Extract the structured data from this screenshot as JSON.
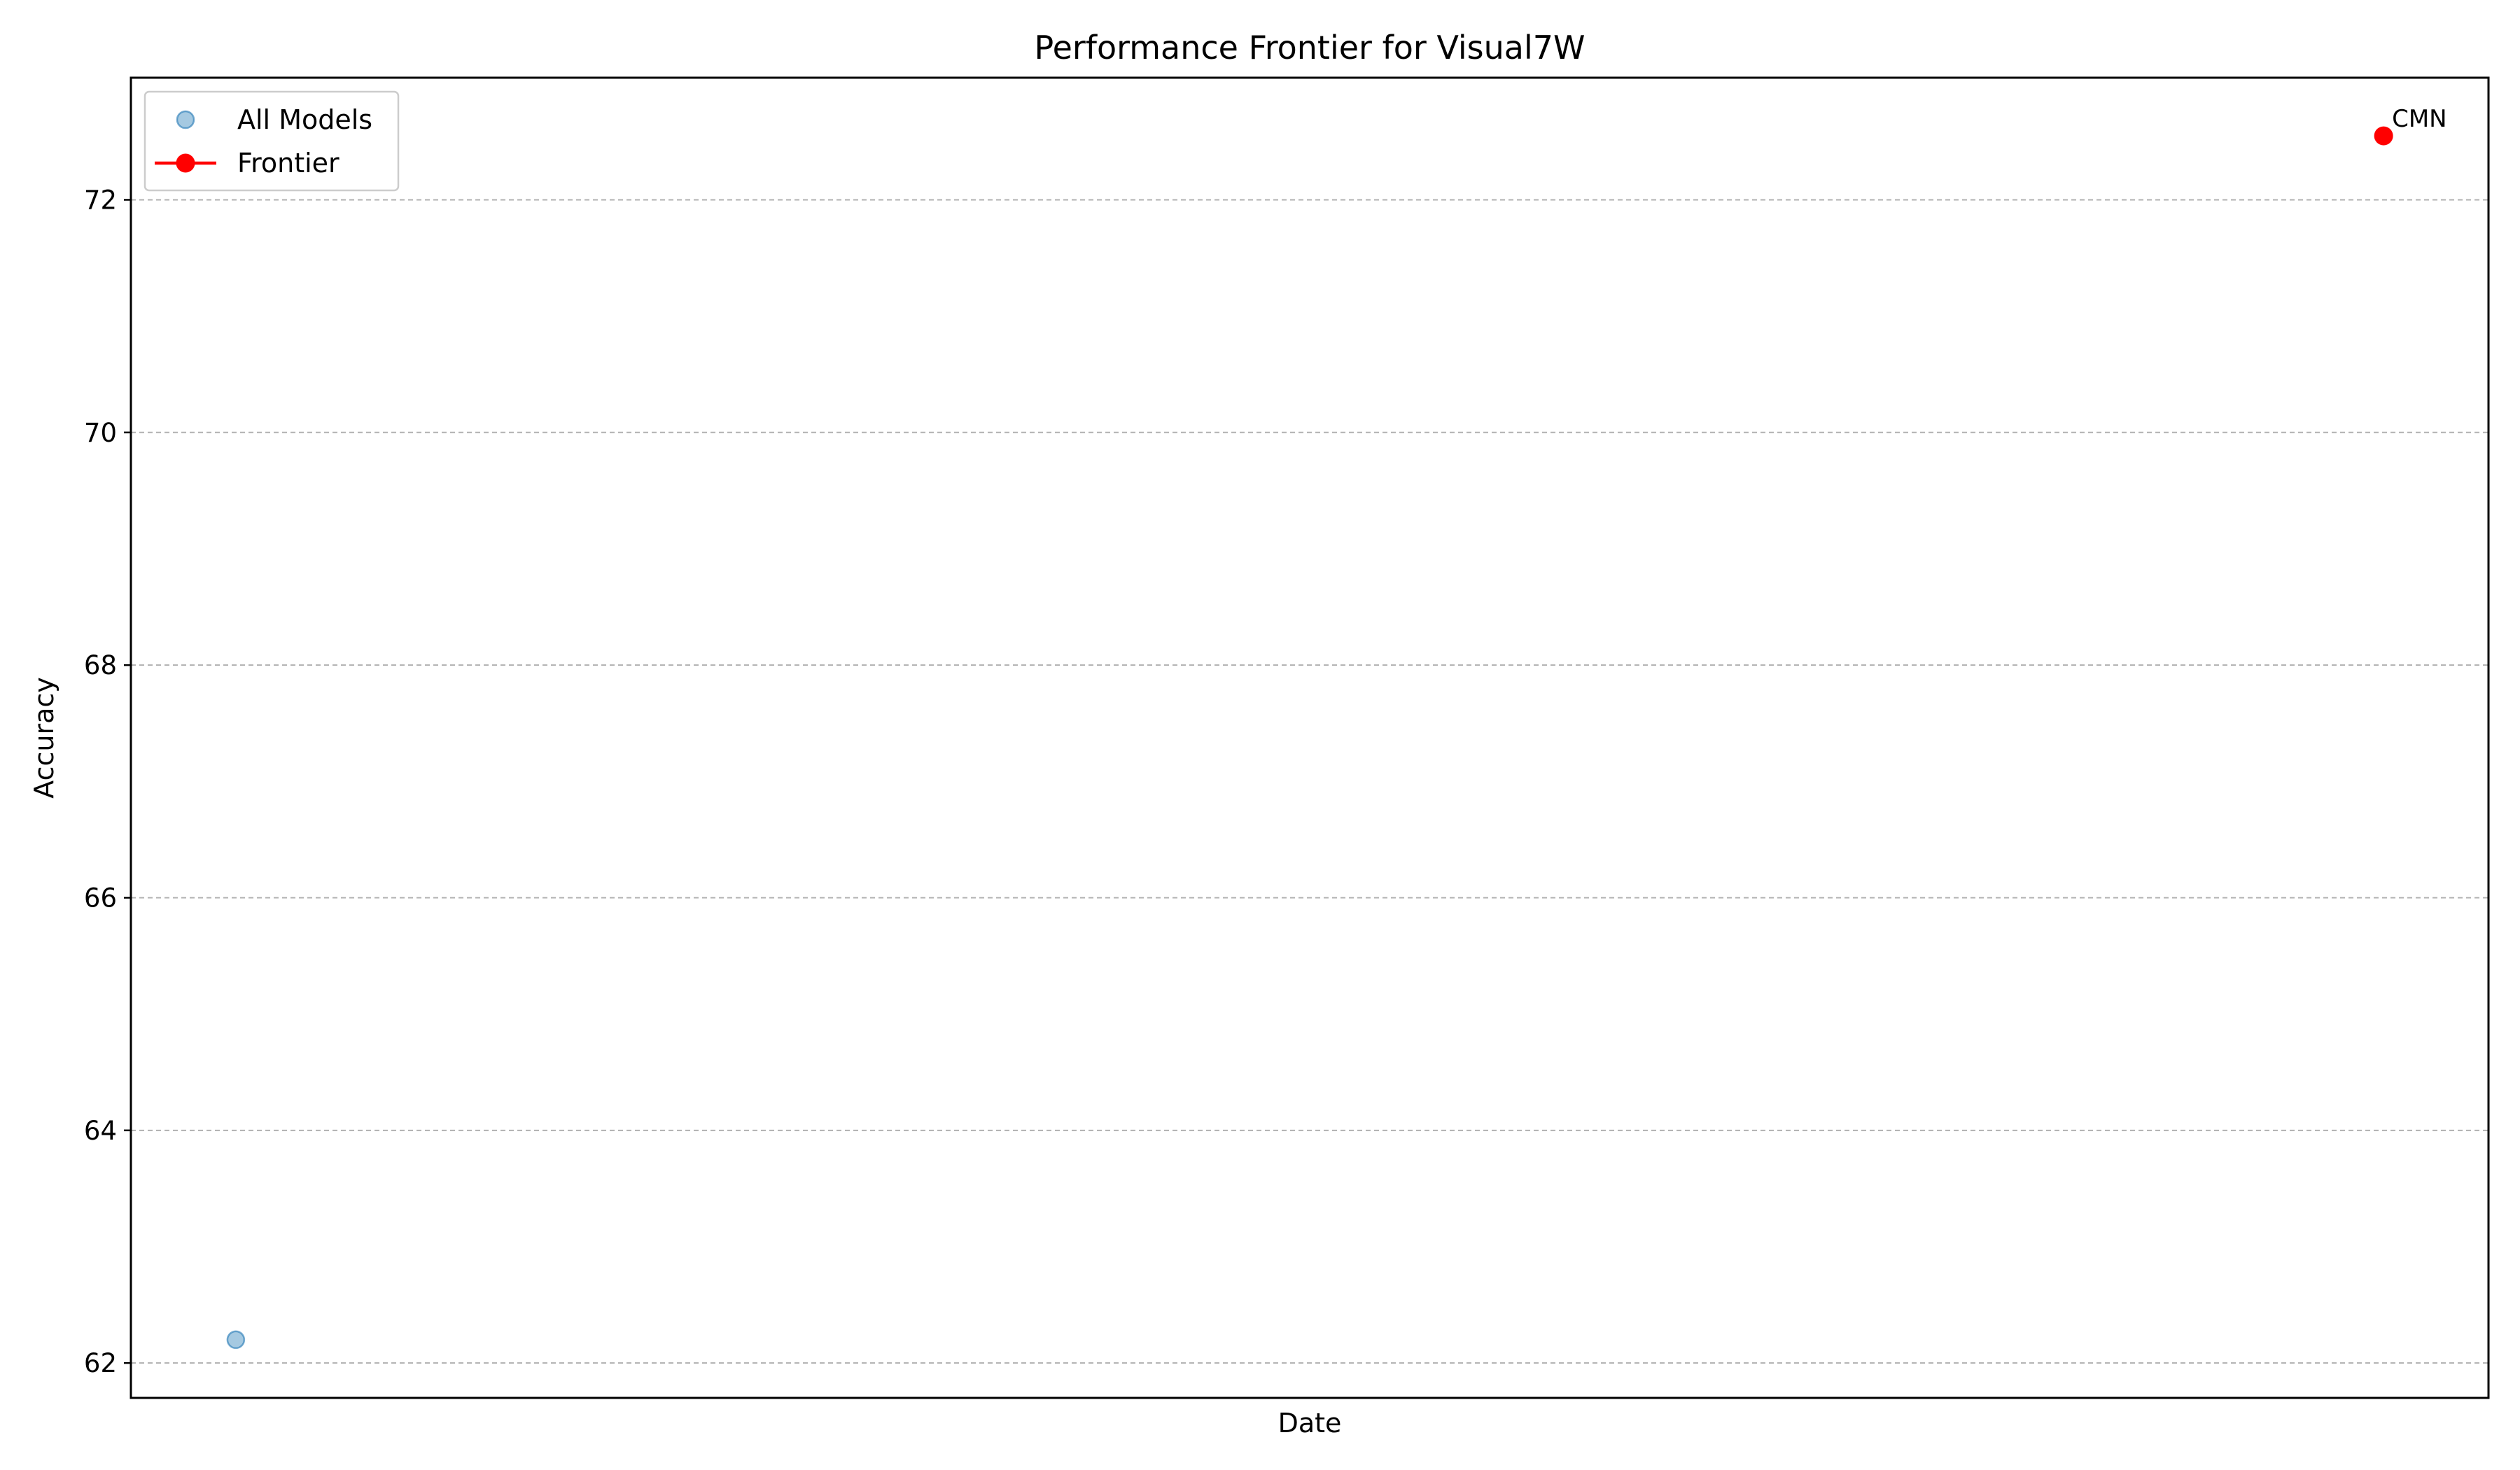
{
  "chart_data": {
    "type": "scatter",
    "title": "Performance Frontier for Visual7W",
    "xlabel": "Date",
    "ylabel": "Accuracy",
    "ylim": [
      61.7,
      73.05
    ],
    "yticks": [
      62,
      64,
      66,
      68,
      70,
      72
    ],
    "grid": "horizontal, dashed",
    "legend_position": "top-left",
    "legend": [
      {
        "label": "All Models",
        "marker": "circle",
        "color": "#1f77b4"
      },
      {
        "label": "Frontier",
        "marker": "line-circle",
        "color": "#ff0000"
      }
    ],
    "series": [
      {
        "name": "All Models",
        "points": [
          {
            "x": "earliest",
            "y": 62.2
          },
          {
            "x": "latest",
            "y": 72.55,
            "label": "CMN"
          }
        ]
      },
      {
        "name": "Frontier",
        "points": [
          {
            "x": "latest",
            "y": 72.55,
            "label": "CMN"
          }
        ]
      }
    ],
    "colors": {
      "all_models": "#1f77b4",
      "frontier": "#ff0000",
      "grid": "#b0b0b0"
    }
  }
}
